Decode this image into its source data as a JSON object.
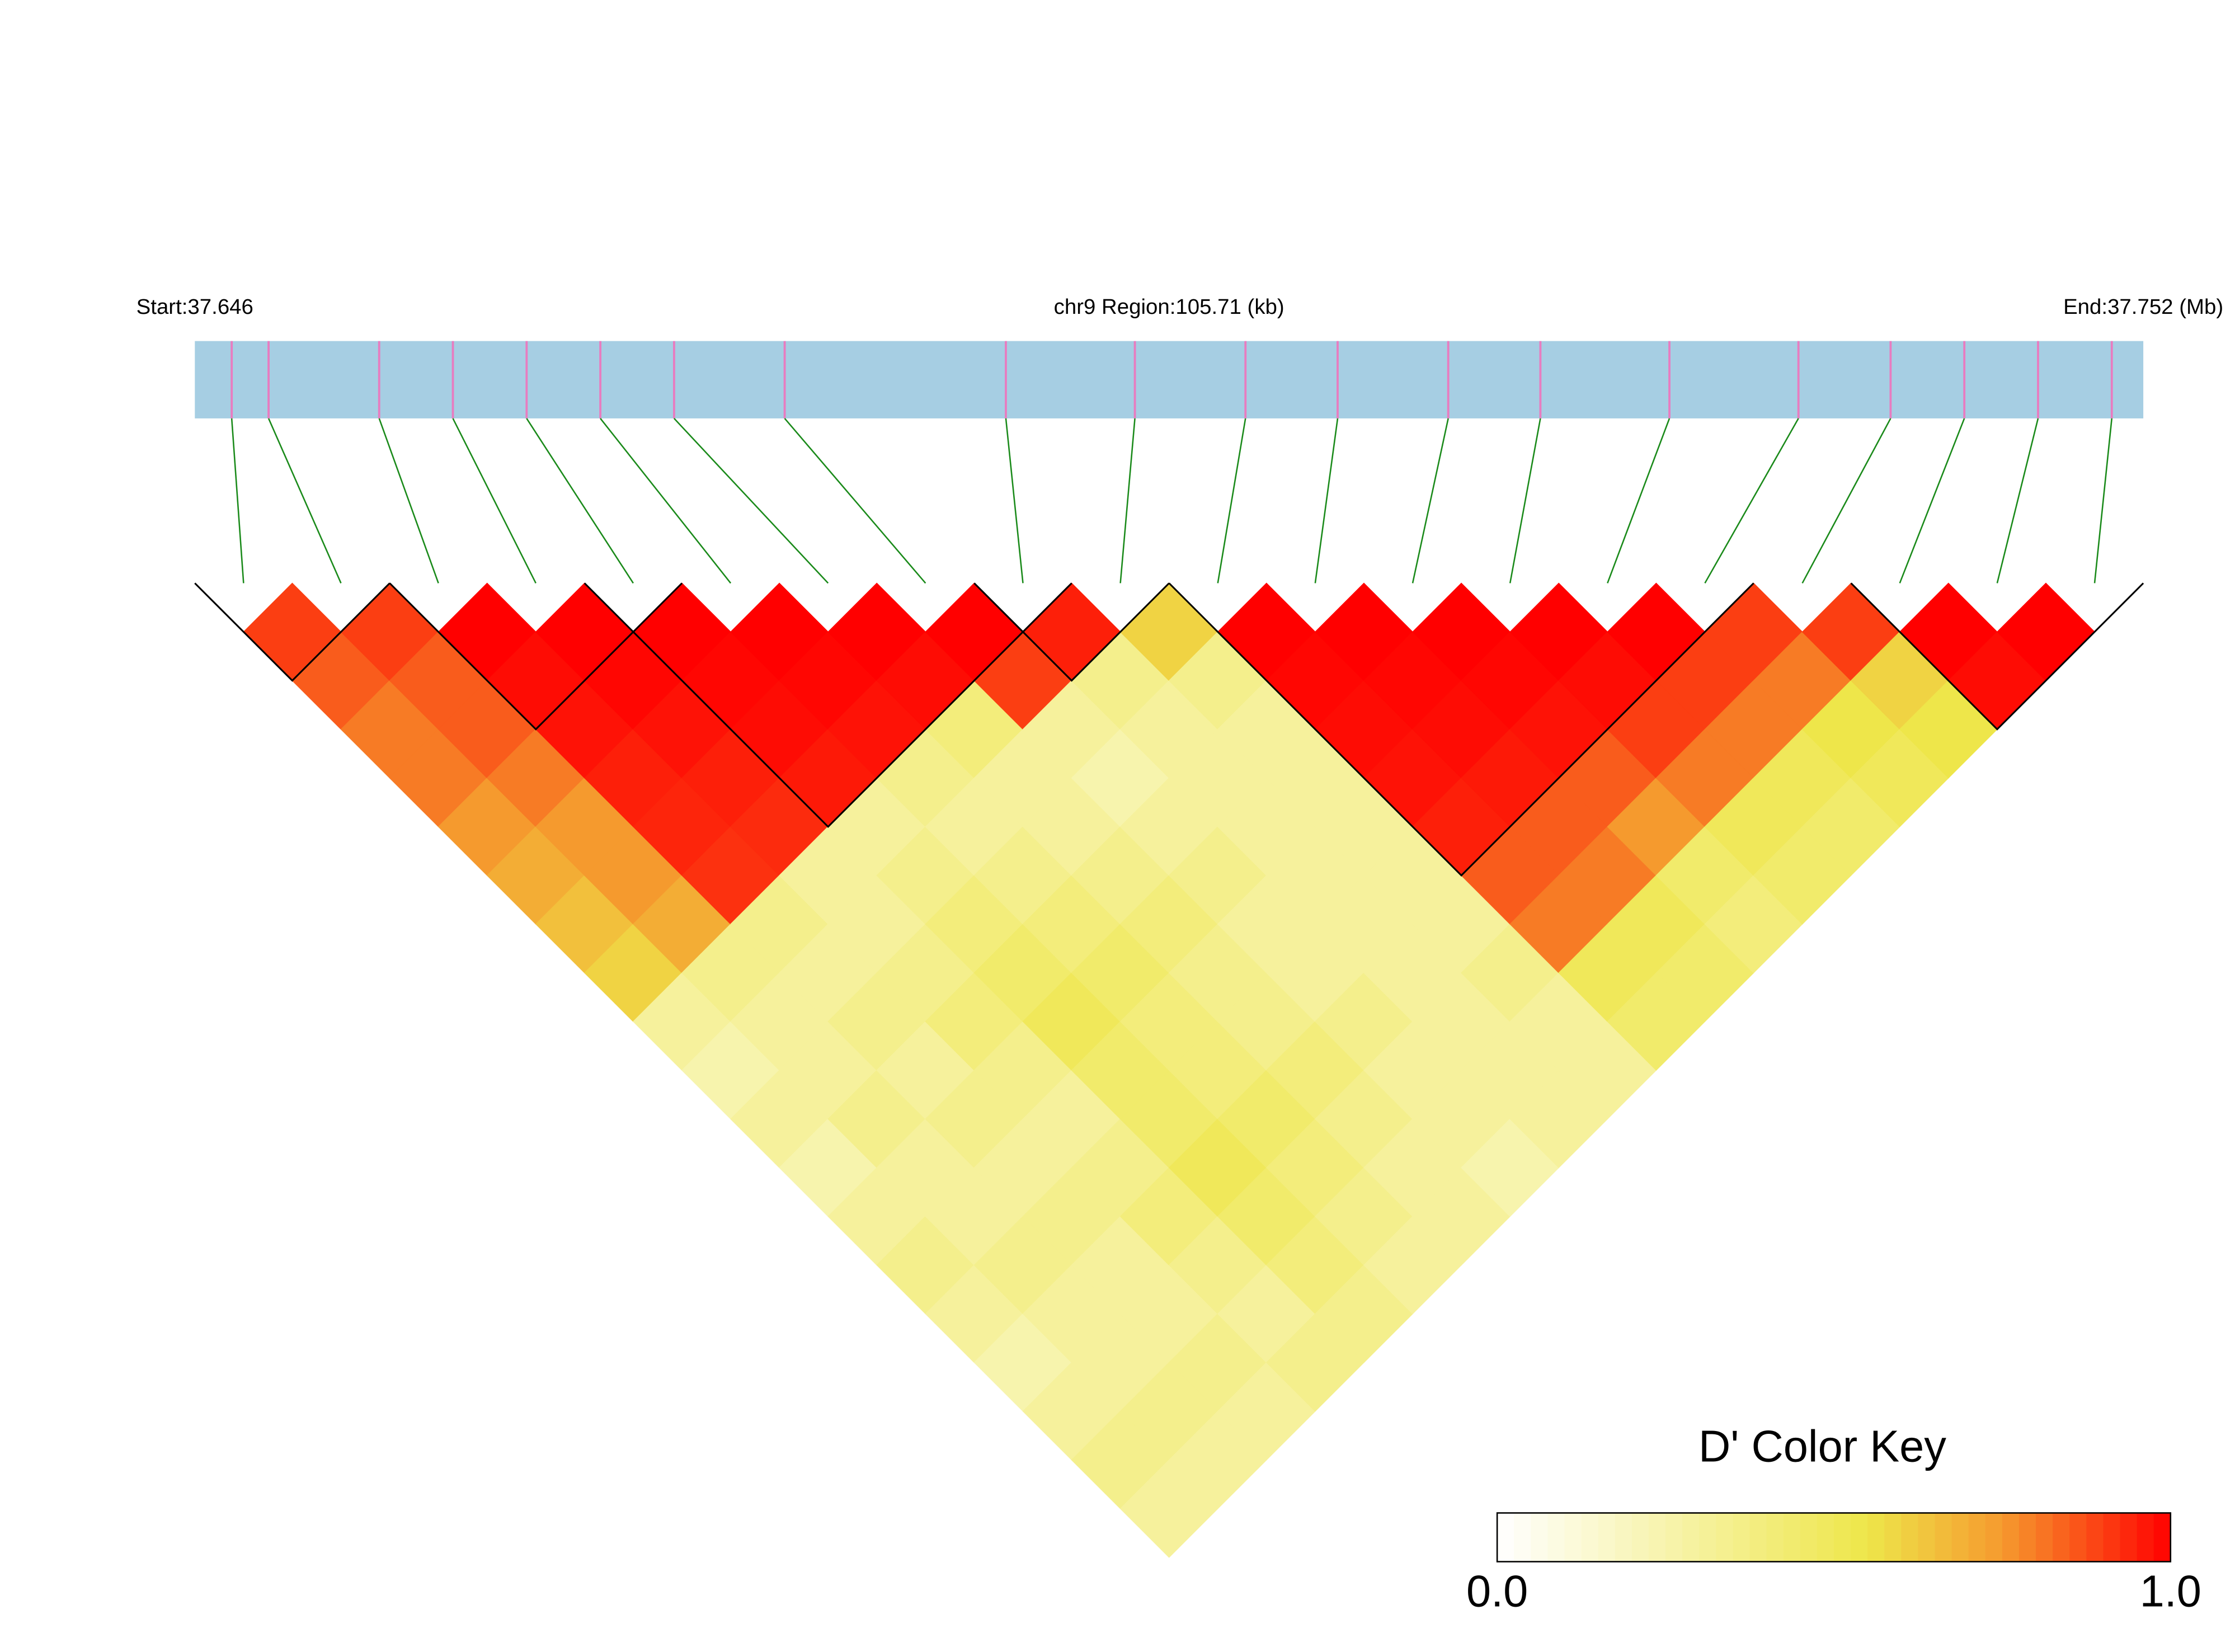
{
  "chart_data": {
    "type": "heatmap",
    "region_start_label": "Start:37.646",
    "region_label": "chr9 Region:105.71 (kb)",
    "region_end_label": "End:37.752 (Mb)",
    "color_key_title": "D' Color Key",
    "xlim": [
      37.646,
      37.75171
    ],
    "snp_positions": [
      37.648,
      37.65,
      37.656,
      37.66,
      37.664,
      37.668,
      37.672,
      37.678,
      37.69,
      37.697,
      37.703,
      37.708,
      37.714,
      37.719,
      37.726,
      37.733,
      37.738,
      37.742,
      37.746,
      37.75
    ],
    "ld_matrix": [
      [
        0.9,
        0.85,
        0.8,
        0.8,
        0.75,
        0.7,
        0.65,
        0.6,
        0.3,
        0.25,
        0.3,
        0.25,
        0.3,
        0.35,
        0.3,
        0.25,
        0.3,
        0.35,
        0.3
      ],
      [
        0.9,
        0.85,
        0.85,
        0.8,
        0.75,
        0.75,
        0.7,
        0.35,
        0.3,
        0.3,
        0.35,
        0.3,
        0.3,
        0.35,
        0.3,
        0.3,
        0.35,
        0.3
      ],
      [
        1,
        0.98,
        0.97,
        0.95,
        0.94,
        0.92,
        0.35,
        0.3,
        0.35,
        0.3,
        0.35,
        0.3,
        0.35,
        0.3,
        0.3,
        0.35,
        0.3
      ],
      [
        1,
        0.99,
        0.97,
        0.95,
        0.93,
        0.3,
        0.3,
        0.35,
        0.4,
        0.35,
        0.3,
        0.35,
        0.4,
        0.35,
        0.3,
        0.35
      ],
      [
        1,
        0.99,
        0.98,
        0.96,
        0.3,
        0.35,
        0.4,
        0.45,
        0.5,
        0.45,
        0.45,
        0.5,
        0.45,
        0.4,
        0.35
      ],
      [
        1,
        0.99,
        0.97,
        0.35,
        0.3,
        0.35,
        0.4,
        0.45,
        0.4,
        0.4,
        0.45,
        0.4,
        0.35,
        0.3
      ],
      [
        1,
        0.98,
        0.4,
        0.3,
        0.3,
        0.35,
        0.4,
        0.35,
        0.35,
        0.4,
        0.35,
        0.3,
        0.3
      ],
      [
        1,
        0.9,
        0.3,
        0.25,
        0.3,
        0.35,
        0.3,
        0.3,
        0.35,
        0.3,
        0.3,
        0.25
      ],
      [
        0.95,
        0.35,
        0.3,
        0.3,
        0.3,
        0.3,
        0.3,
        0.3,
        0.3,
        0.3,
        0.3
      ],
      [
        0.6,
        0.35,
        0.3,
        0.3,
        0.3,
        0.3,
        0.3,
        0.35,
        0.3,
        0.3
      ],
      [
        1,
        0.99,
        0.98,
        0.97,
        0.95,
        0.85,
        0.8,
        0.5,
        0.45
      ],
      [
        1,
        0.99,
        0.98,
        0.96,
        0.85,
        0.8,
        0.5,
        0.45
      ],
      [
        1,
        0.99,
        0.97,
        0.85,
        0.75,
        0.45,
        0.4
      ],
      [
        1,
        0.98,
        0.9,
        0.8,
        0.5,
        0.45
      ],
      [
        1,
        0.9,
        0.8,
        0.5,
        0.45
      ],
      [
        0.9,
        0.8,
        0.55,
        0.5
      ],
      [
        0.9,
        0.6,
        0.55
      ],
      [
        1,
        0.98
      ],
      [
        1
      ]
    ],
    "blocks": [
      [
        0,
        1
      ],
      [
        2,
        4
      ],
      [
        4,
        8
      ],
      [
        8,
        9
      ],
      [
        10,
        15
      ],
      [
        17,
        19
      ]
    ],
    "color_stops": [
      {
        "value": 0,
        "color": "#ffffff"
      },
      {
        "value": 0.55,
        "color": "#eee64a"
      },
      {
        "value": 0.75,
        "color": "#f59a2e"
      },
      {
        "value": 1,
        "color": "#ff0000"
      }
    ],
    "color_key_lim": [
      0,
      1
    ],
    "color_key_ticks": [
      {
        "value": 0,
        "label": "0.0"
      },
      {
        "value": 1,
        "label": "1.0"
      }
    ]
  }
}
